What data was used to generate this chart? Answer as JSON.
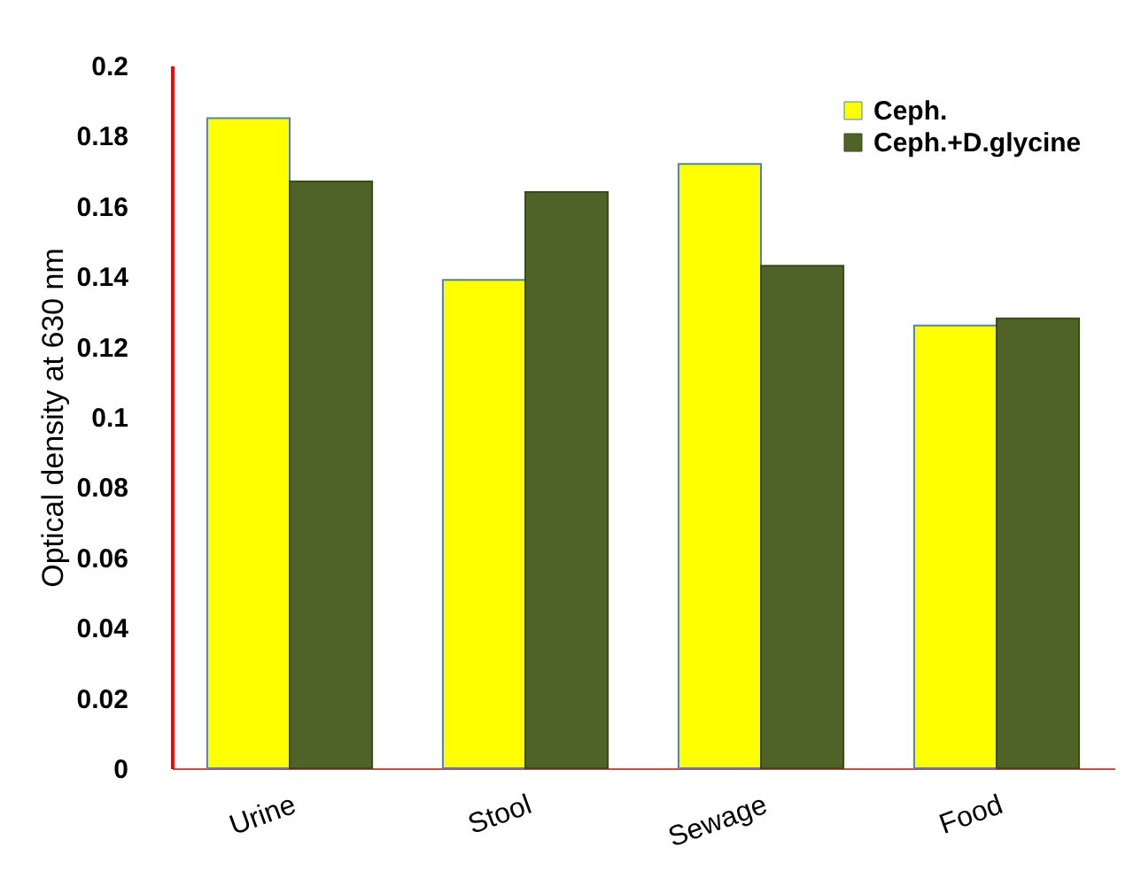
{
  "chart_data": {
    "type": "bar",
    "ylabel": "Optical density at 630 nm",
    "categories": [
      "Urine",
      "Stool",
      "Sewage",
      "Food"
    ],
    "series": [
      {
        "name": "Ceph.",
        "color": "#ffff00",
        "values": [
          0.185,
          0.139,
          0.172,
          0.126
        ]
      },
      {
        "name": "Ceph.+D.glycine",
        "color": "#4f6228",
        "values": [
          0.167,
          0.164,
          0.143,
          0.128
        ]
      }
    ],
    "ylim": [
      0,
      0.2
    ],
    "yticks": [
      0,
      0.02,
      0.04,
      0.06,
      0.08,
      0.1,
      0.12,
      0.14,
      0.16,
      0.18,
      0.2
    ],
    "grid": false,
    "legend": "top right"
  }
}
